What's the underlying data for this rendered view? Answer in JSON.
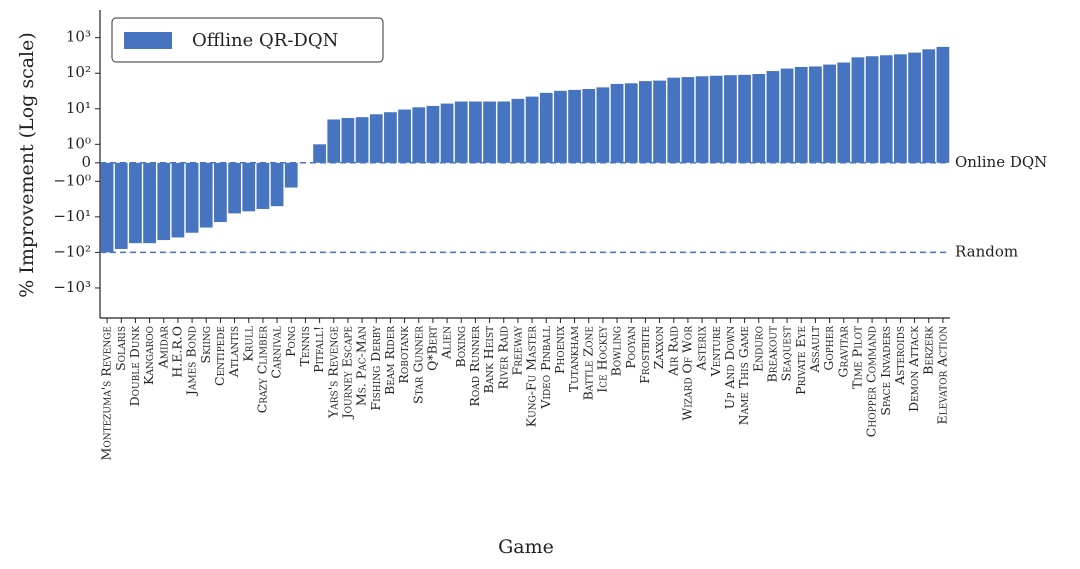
{
  "chart_data": {
    "type": "bar",
    "xlabel": "Game",
    "ylabel": "% Improvement (Log scale)",
    "yscale": "symlog",
    "linthresh": 1,
    "ylim": [
      -7000,
      6000
    ],
    "yticks": [
      {
        "value": 1000,
        "label": "10³"
      },
      {
        "value": 100,
        "label": "10²"
      },
      {
        "value": 10,
        "label": "10¹"
      },
      {
        "value": 1,
        "label": "10⁰"
      },
      0,
      {
        "value": -1,
        "label": "−10⁰"
      },
      {
        "value": -10,
        "label": "−10¹"
      },
      {
        "value": -100,
        "label": "−10²"
      },
      {
        "value": -1000,
        "label": "−10³"
      }
    ],
    "legend": "upper left",
    "reference_lines": [
      {
        "value": 0,
        "label": "Online DQN",
        "color": "#4674c0"
      },
      {
        "value": -100,
        "label": "Random",
        "color": "#4674c0"
      }
    ],
    "categories": [
      "Montezuma's Revenge",
      "Solaris",
      "Double Dunk",
      "Kangaroo",
      "Amidar",
      "H.E.R.O",
      "James Bond",
      "Skiing",
      "Centipede",
      "Atlantis",
      "Krull",
      "Crazy Climber",
      "Carnival",
      "Pong",
      "Tennis",
      "Pitfall!",
      "Yars's Revenge",
      "Journey Escape",
      "Ms. Pac-Man",
      "Fishing Derby",
      "Beam Rider",
      "Robotank",
      "Star Gunner",
      "Q*Bert",
      "Alien",
      "Boxing",
      "Road Runner",
      "Bank Heist",
      "River Raid",
      "Freeway",
      "Kung-Fu Master",
      "Video Pinball",
      "Phoenix",
      "Tutankham",
      "Battle Zone",
      "Ice Hockey",
      "Bowling",
      "Pooyan",
      "Frostbite",
      "Zaxxon",
      "Air Raid",
      "Wizard Of Wor",
      "Asterix",
      "Venture",
      "Up And Down",
      "Name This Game",
      "Enduro",
      "Breakout",
      "Seaquest",
      "Private Eye",
      "Assault",
      "Gopher",
      "Gravitar",
      "Time Pilot",
      "Chopper Command",
      "Space Invaders",
      "Asteroids",
      "Demon Attack",
      "Berzerk",
      "Elevator Action"
    ],
    "series": [
      {
        "name": "Offline QR-DQN",
        "color": "#4674c0",
        "values": [
          -100,
          -80,
          -55,
          -55,
          -45,
          -38,
          -28,
          -20,
          -14,
          -8,
          -7,
          -6,
          -5,
          -1.5,
          0,
          1,
          5,
          5.5,
          5.8,
          7,
          8,
          9.5,
          11,
          12,
          14,
          16,
          16,
          16,
          16,
          19,
          22,
          28,
          32,
          34,
          36,
          40,
          50,
          52,
          60,
          62,
          75,
          78,
          82,
          85,
          88,
          90,
          95,
          115,
          135,
          150,
          155,
          175,
          200,
          280,
          300,
          320,
          340,
          380,
          470,
          550
        ]
      }
    ]
  }
}
